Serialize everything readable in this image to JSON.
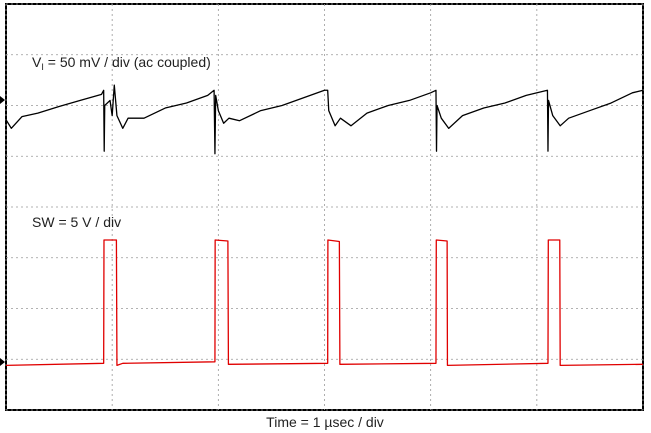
{
  "chart_data": {
    "type": "line",
    "xlabel": "Time = 1 µsec / div",
    "xlim": [
      0,
      6
    ],
    "ylim": [
      0,
      8
    ],
    "xticks": [
      0,
      1,
      2,
      3,
      4,
      5,
      6
    ],
    "yticks": [
      0,
      1,
      2,
      3,
      4,
      5,
      6,
      7,
      8
    ],
    "grid": true,
    "series": [
      {
        "name": "V",
        "name_sub": "I",
        "name_rest": " = 50 mV / div (ac coupled)",
        "color": "#000000",
        "x": [
          0,
          0.05,
          0.15,
          0.3,
          0.5,
          0.7,
          0.9,
          0.92,
          0.925,
          0.93,
          0.98,
          1.0,
          1.02,
          1.045,
          1.1,
          1.15,
          1.3,
          1.5,
          1.7,
          1.9,
          1.96,
          1.968,
          1.975,
          2.0,
          2.05,
          2.1,
          2.2,
          2.4,
          2.6,
          2.8,
          3.0,
          3.03,
          3.04,
          3.1,
          3.15,
          3.25,
          3.4,
          3.6,
          3.8,
          4.0,
          4.05,
          4.055,
          4.06,
          4.1,
          4.17,
          4.3,
          4.5,
          4.7,
          4.9,
          5.1,
          5.105,
          5.11,
          5.15,
          5.22,
          5.3,
          5.5,
          5.7,
          5.9,
          6.0
        ],
        "values": [
          5.72,
          5.55,
          5.78,
          5.85,
          5.98,
          6.1,
          6.22,
          6.3,
          5.1,
          6.0,
          6.1,
          5.8,
          6.4,
          5.8,
          5.55,
          5.75,
          5.75,
          5.95,
          6.05,
          6.2,
          6.3,
          5.05,
          6.2,
          5.9,
          5.65,
          5.75,
          5.7,
          5.9,
          6.0,
          6.15,
          6.3,
          6.3,
          5.9,
          5.6,
          5.75,
          5.6,
          5.85,
          6.0,
          6.1,
          6.25,
          6.3,
          5.1,
          6.0,
          5.75,
          5.55,
          5.8,
          5.95,
          6.05,
          6.2,
          6.3,
          5.1,
          6.1,
          5.8,
          5.6,
          5.75,
          5.9,
          6.05,
          6.25,
          6.3
        ]
      },
      {
        "name": "SW = 5 V / div",
        "color": "#e00000",
        "x": [
          0,
          0.92,
          0.923,
          0.95,
          1.04,
          1.045,
          1.1,
          1.968,
          1.97,
          2.09,
          2.095,
          3.03,
          3.032,
          3.14,
          3.145,
          4.05,
          4.053,
          4.155,
          4.158,
          5.105,
          5.108,
          5.216,
          5.22,
          6.0
        ],
        "values": [
          0.88,
          0.92,
          3.35,
          3.35,
          3.35,
          0.88,
          0.92,
          0.95,
          3.35,
          3.33,
          0.9,
          0.92,
          3.35,
          3.32,
          0.9,
          0.92,
          3.35,
          3.33,
          0.88,
          0.92,
          3.35,
          3.35,
          0.88,
          0.9
        ]
      }
    ]
  }
}
